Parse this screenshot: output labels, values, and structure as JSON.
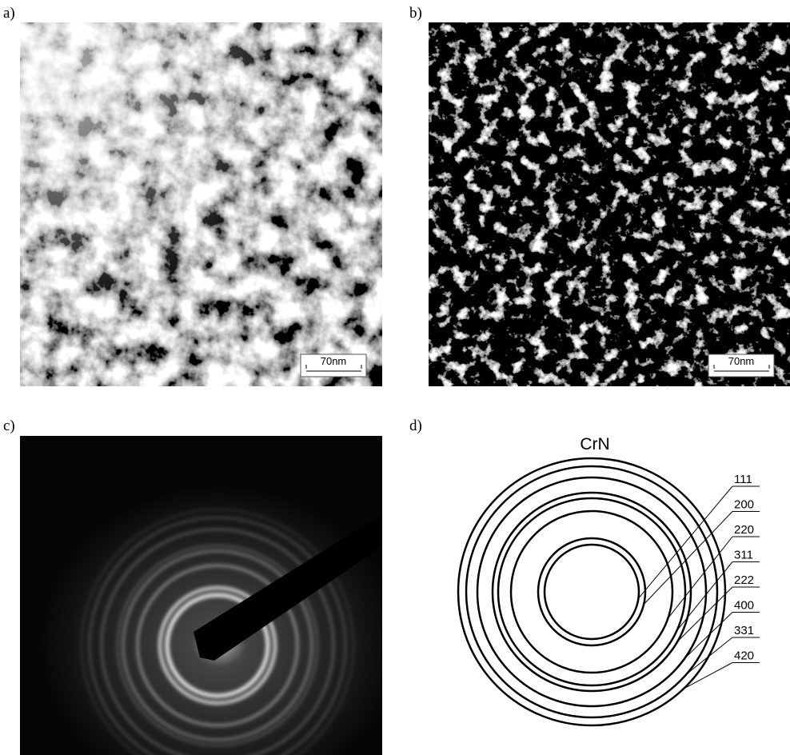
{
  "panels": {
    "a": {
      "label": "a)",
      "scale_bar": "70nm"
    },
    "b": {
      "label": "b)",
      "scale_bar": "70nm"
    },
    "c": {
      "label": "c)"
    },
    "d": {
      "label": "d)",
      "title": "CrN",
      "rings": [
        "111",
        "200",
        "220",
        "311",
        "222",
        "400",
        "331",
        "420"
      ]
    }
  }
}
